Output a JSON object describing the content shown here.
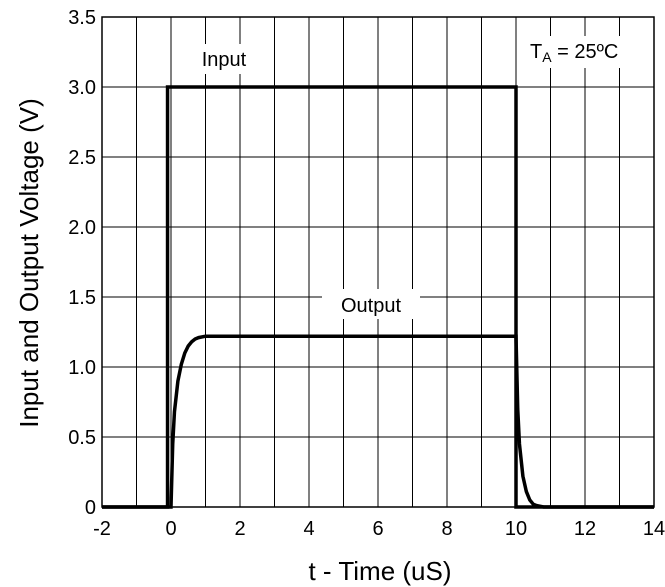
{
  "chart_data": {
    "type": "line",
    "title": "",
    "xlabel": "t - Time (uS)",
    "ylabel": "Input and Output Voltage (V)",
    "xlim": [
      -2,
      14
    ],
    "ylim": [
      0,
      3.5
    ],
    "x_ticks": [
      "-2",
      "0",
      "2",
      "4",
      "6",
      "8",
      "10",
      "12",
      "14"
    ],
    "y_ticks": [
      "0",
      "0.5",
      "1.0",
      "1.5",
      "2.0",
      "2.5",
      "3.0",
      "3.5"
    ],
    "grid": true,
    "annotation": {
      "t": "T",
      "sub": "A",
      "rest": " = 25ºC"
    },
    "series": [
      {
        "name": "Input",
        "x": [
          -2,
          -0.1,
          -0.1,
          10,
          10,
          14
        ],
        "y": [
          0,
          0,
          3.0,
          3.0,
          0,
          0
        ]
      },
      {
        "name": "Output",
        "x": [
          -2,
          -0.1,
          0,
          0.05,
          0.1,
          0.2,
          0.3,
          0.4,
          0.5,
          0.6,
          0.7,
          0.8,
          1.0,
          10,
          10.05,
          10.1,
          10.2,
          10.3,
          10.4,
          10.5,
          10.6,
          10.8,
          14
        ],
        "y": [
          0,
          0,
          0,
          0.45,
          0.68,
          0.9,
          1.02,
          1.1,
          1.15,
          1.18,
          1.2,
          1.21,
          1.22,
          1.22,
          0.7,
          0.45,
          0.22,
          0.11,
          0.05,
          0.02,
          0.01,
          0,
          0
        ]
      }
    ]
  }
}
